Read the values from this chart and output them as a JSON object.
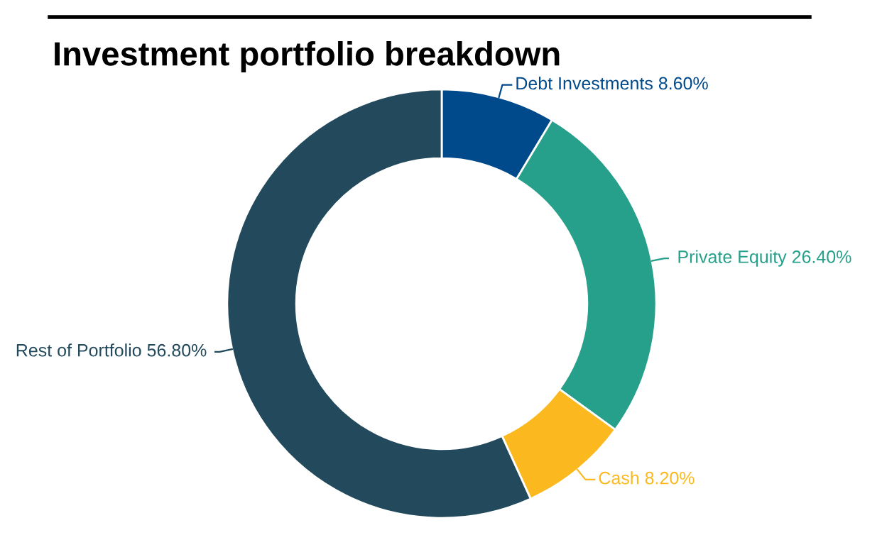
{
  "chart_data": {
    "type": "donut",
    "title": "Investment portfolio breakdown",
    "categories": [
      "Debt Investments",
      "Private Equity",
      "Cash",
      "Rest of Portfolio"
    ],
    "values": [
      8.6,
      26.4,
      8.2,
      56.8
    ],
    "value_labels": [
      "8.60%",
      "26.40%",
      "8.20%",
      "56.80%"
    ],
    "colors": [
      "#004a8c",
      "#26a08a",
      "#fbb91f",
      "#234a5c"
    ],
    "legend": false
  }
}
